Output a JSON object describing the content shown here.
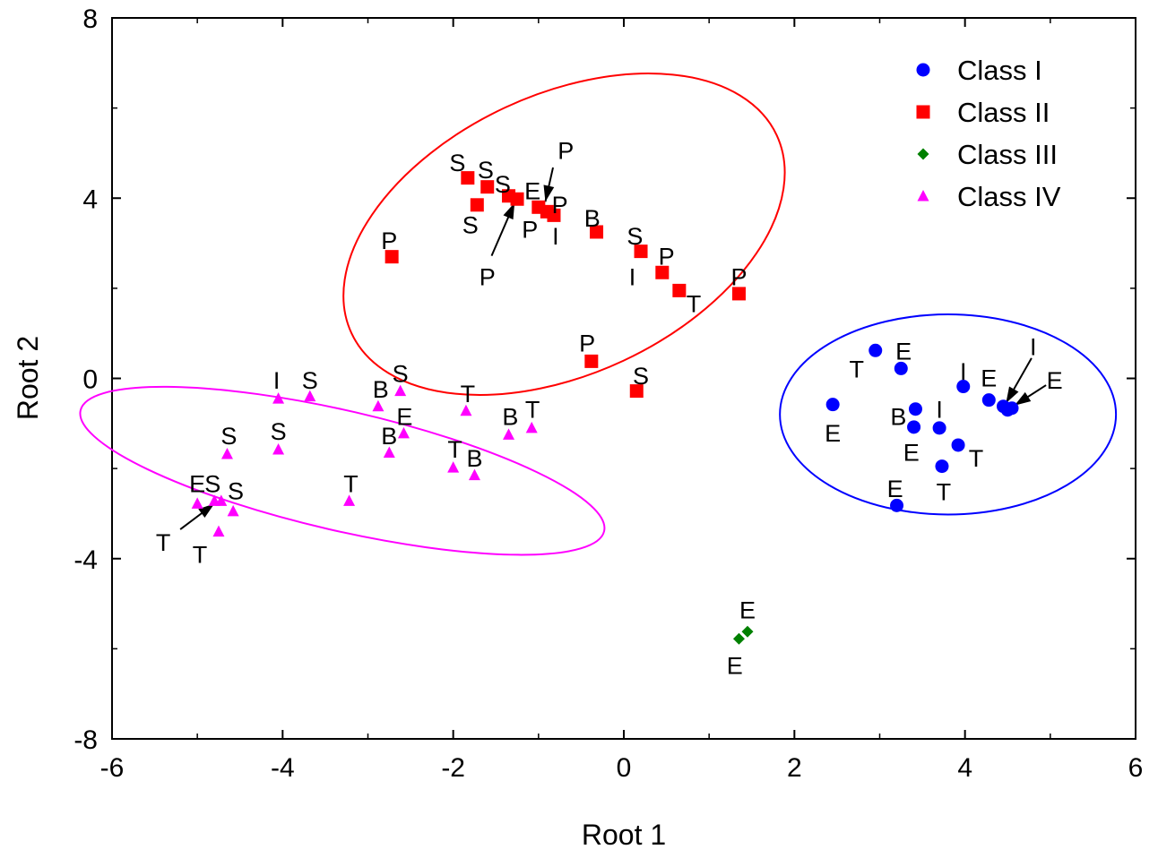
{
  "chart_data": {
    "type": "scatter",
    "xlabel": "Root 1",
    "ylabel": "Root 2",
    "xlim": [
      -6,
      6
    ],
    "ylim": [
      -8,
      8
    ],
    "xticks": [
      -6,
      -4,
      -2,
      0,
      2,
      4,
      6
    ],
    "yticks": [
      -8,
      -4,
      0,
      4,
      8
    ],
    "xtick_labels": [
      "-6",
      "-4",
      "-2",
      "0",
      "2",
      "4",
      "6"
    ],
    "ytick_labels": [
      "-8",
      "-4",
      "0",
      "4",
      "8"
    ],
    "grid": false,
    "legend_position": "top-right",
    "series": [
      {
        "name": "Class I",
        "marker": "circle",
        "color": "#0000ff",
        "points": [
          {
            "x": 2.95,
            "y": 0.62,
            "label": ""
          },
          {
            "x": 3.25,
            "y": 0.22,
            "label": ""
          },
          {
            "x": 2.45,
            "y": -0.58,
            "label": ""
          },
          {
            "x": 3.42,
            "y": -0.68,
            "label": ""
          },
          {
            "x": 3.4,
            "y": -1.08,
            "label": ""
          },
          {
            "x": 3.7,
            "y": -1.1,
            "label": ""
          },
          {
            "x": 3.98,
            "y": -0.18,
            "label": ""
          },
          {
            "x": 4.28,
            "y": -0.48,
            "label": ""
          },
          {
            "x": 4.45,
            "y": -0.62,
            "label": ""
          },
          {
            "x": 4.5,
            "y": -0.7,
            "label": ""
          },
          {
            "x": 4.55,
            "y": -0.66,
            "label": ""
          },
          {
            "x": 3.92,
            "y": -1.48,
            "label": ""
          },
          {
            "x": 3.73,
            "y": -1.95,
            "label": ""
          },
          {
            "x": 3.2,
            "y": -2.82,
            "label": ""
          }
        ]
      },
      {
        "name": "Class II",
        "marker": "square",
        "color": "#ff0000",
        "points": [
          {
            "x": -1.83,
            "y": 4.45,
            "label": ""
          },
          {
            "x": -1.72,
            "y": 3.85,
            "label": ""
          },
          {
            "x": -1.6,
            "y": 4.25,
            "label": ""
          },
          {
            "x": -1.35,
            "y": 4.05,
            "label": ""
          },
          {
            "x": -1.25,
            "y": 3.98,
            "label": ""
          },
          {
            "x": -1.0,
            "y": 3.8,
            "label": ""
          },
          {
            "x": -0.9,
            "y": 3.7,
            "label": ""
          },
          {
            "x": -0.82,
            "y": 3.62,
            "label": ""
          },
          {
            "x": -0.32,
            "y": 3.25,
            "label": ""
          },
          {
            "x": 0.2,
            "y": 2.82,
            "label": ""
          },
          {
            "x": 0.45,
            "y": 2.35,
            "label": ""
          },
          {
            "x": 0.65,
            "y": 1.95,
            "label": ""
          },
          {
            "x": 1.35,
            "y": 1.88,
            "label": ""
          },
          {
            "x": -2.72,
            "y": 2.7,
            "label": ""
          },
          {
            "x": -0.38,
            "y": 0.38,
            "label": ""
          },
          {
            "x": 0.15,
            "y": -0.28,
            "label": ""
          }
        ]
      },
      {
        "name": "Class III",
        "marker": "diamond",
        "color": "#008000",
        "points": [
          {
            "x": 1.35,
            "y": -5.78,
            "label": ""
          },
          {
            "x": 1.45,
            "y": -5.62,
            "label": ""
          }
        ]
      },
      {
        "name": "Class IV",
        "marker": "triangle",
        "color": "#ff00ff",
        "points": [
          {
            "x": -4.05,
            "y": -0.45,
            "label": ""
          },
          {
            "x": -3.68,
            "y": -0.4,
            "label": ""
          },
          {
            "x": -2.88,
            "y": -0.62,
            "label": ""
          },
          {
            "x": -2.62,
            "y": -0.28,
            "label": ""
          },
          {
            "x": -2.58,
            "y": -1.22,
            "label": ""
          },
          {
            "x": -2.75,
            "y": -1.65,
            "label": ""
          },
          {
            "x": -1.85,
            "y": -0.72,
            "label": ""
          },
          {
            "x": -1.35,
            "y": -1.25,
            "label": ""
          },
          {
            "x": -1.08,
            "y": -1.1,
            "label": ""
          },
          {
            "x": -2.0,
            "y": -1.98,
            "label": ""
          },
          {
            "x": -1.75,
            "y": -2.15,
            "label": ""
          },
          {
            "x": -4.05,
            "y": -1.58,
            "label": ""
          },
          {
            "x": -4.65,
            "y": -1.68,
            "label": ""
          },
          {
            "x": -3.22,
            "y": -2.72,
            "label": ""
          },
          {
            "x": -5.0,
            "y": -2.78,
            "label": ""
          },
          {
            "x": -4.8,
            "y": -2.72,
            "label": ""
          },
          {
            "x": -4.72,
            "y": -2.72,
            "label": ""
          },
          {
            "x": -4.58,
            "y": -2.95,
            "label": ""
          },
          {
            "x": -4.75,
            "y": -3.4,
            "label": ""
          }
        ]
      }
    ],
    "annotations": [
      {
        "text": "S",
        "x": -1.95,
        "y": 4.78
      },
      {
        "text": "S",
        "x": -1.62,
        "y": 4.62
      },
      {
        "text": "S",
        "x": -1.42,
        "y": 4.3
      },
      {
        "text": "E",
        "x": -1.07,
        "y": 4.15
      },
      {
        "text": "P",
        "x": -0.68,
        "y": 5.05
      },
      {
        "text": "P",
        "x": -0.75,
        "y": 3.85
      },
      {
        "text": "S",
        "x": -1.8,
        "y": 3.4
      },
      {
        "text": "P",
        "x": -1.1,
        "y": 3.3
      },
      {
        "text": "I",
        "x": -0.8,
        "y": 3.15
      },
      {
        "text": "P",
        "x": -1.6,
        "y": 2.25
      },
      {
        "text": "B",
        "x": -0.37,
        "y": 3.55
      },
      {
        "text": "S",
        "x": 0.13,
        "y": 3.15
      },
      {
        "text": "P",
        "x": 0.5,
        "y": 2.7
      },
      {
        "text": "I",
        "x": 0.1,
        "y": 2.25
      },
      {
        "text": "P",
        "x": 1.35,
        "y": 2.25
      },
      {
        "text": "T",
        "x": 0.82,
        "y": 1.65
      },
      {
        "text": "P",
        "x": -2.75,
        "y": 3.05
      },
      {
        "text": "P",
        "x": -0.43,
        "y": 0.78
      },
      {
        "text": "S",
        "x": 0.2,
        "y": 0.05
      },
      {
        "text": "E",
        "x": 3.28,
        "y": 0.6
      },
      {
        "text": "T",
        "x": 2.73,
        "y": 0.2
      },
      {
        "text": "I",
        "x": 3.98,
        "y": 0.15
      },
      {
        "text": "E",
        "x": 4.28,
        "y": 0.0
      },
      {
        "text": "I",
        "x": 4.8,
        "y": 0.7
      },
      {
        "text": "E",
        "x": 5.05,
        "y": -0.05
      },
      {
        "text": "B",
        "x": 3.22,
        "y": -0.85
      },
      {
        "text": "I",
        "x": 3.7,
        "y": -0.7
      },
      {
        "text": "E",
        "x": 2.45,
        "y": -1.22
      },
      {
        "text": "E",
        "x": 3.37,
        "y": -1.65
      },
      {
        "text": "T",
        "x": 4.13,
        "y": -1.78
      },
      {
        "text": "T",
        "x": 3.75,
        "y": -2.52
      },
      {
        "text": "E",
        "x": 3.18,
        "y": -2.45
      },
      {
        "text": "I",
        "x": -4.07,
        "y": -0.05
      },
      {
        "text": "S",
        "x": -3.68,
        "y": -0.05
      },
      {
        "text": "S",
        "x": -2.62,
        "y": 0.1
      },
      {
        "text": "B",
        "x": -2.85,
        "y": -0.25
      },
      {
        "text": "T",
        "x": -1.83,
        "y": -0.35
      },
      {
        "text": "E",
        "x": -2.57,
        "y": -0.85
      },
      {
        "text": "B",
        "x": -1.33,
        "y": -0.85
      },
      {
        "text": "T",
        "x": -1.07,
        "y": -0.7
      },
      {
        "text": "S",
        "x": -4.05,
        "y": -1.18
      },
      {
        "text": "S",
        "x": -4.63,
        "y": -1.28
      },
      {
        "text": "B",
        "x": -2.75,
        "y": -1.28
      },
      {
        "text": "T",
        "x": -1.98,
        "y": -1.58
      },
      {
        "text": "B",
        "x": -1.75,
        "y": -1.78
      },
      {
        "text": "T",
        "x": -3.2,
        "y": -2.35
      },
      {
        "text": "E",
        "x": -5.0,
        "y": -2.35
      },
      {
        "text": "S",
        "x": -4.82,
        "y": -2.35
      },
      {
        "text": "S",
        "x": -4.55,
        "y": -2.5
      },
      {
        "text": "T",
        "x": -5.4,
        "y": -3.65
      },
      {
        "text": "T",
        "x": -4.97,
        "y": -3.92
      },
      {
        "text": "E",
        "x": 1.45,
        "y": -5.15
      },
      {
        "text": "E",
        "x": 1.3,
        "y": -6.38
      }
    ],
    "arrows": [
      {
        "x1": -0.83,
        "y1": 4.68,
        "x2": -0.92,
        "y2": 3.92
      },
      {
        "x1": -1.55,
        "y1": 2.72,
        "x2": -1.28,
        "y2": 3.9
      },
      {
        "x1": 4.78,
        "y1": 0.45,
        "x2": 4.48,
        "y2": -0.55
      },
      {
        "x1": 4.95,
        "y1": -0.15,
        "x2": 4.58,
        "y2": -0.6
      },
      {
        "x1": -5.2,
        "y1": -3.35,
        "x2": -4.8,
        "y2": -2.78
      }
    ],
    "ellipses": [
      {
        "cx": -0.7,
        "cy": 3.2,
        "rx": 2.75,
        "ry": 3.1,
        "angle_deg": -25,
        "color": "#ff0000"
      },
      {
        "cx": 3.8,
        "cy": -0.8,
        "rx": 1.97,
        "ry": 2.22,
        "angle_deg": 0,
        "color": "#0000ff"
      },
      {
        "cx": -3.3,
        "cy": -2.05,
        "rx": 3.15,
        "ry": 1.33,
        "angle_deg": 13,
        "color": "#ff00ff"
      }
    ]
  }
}
